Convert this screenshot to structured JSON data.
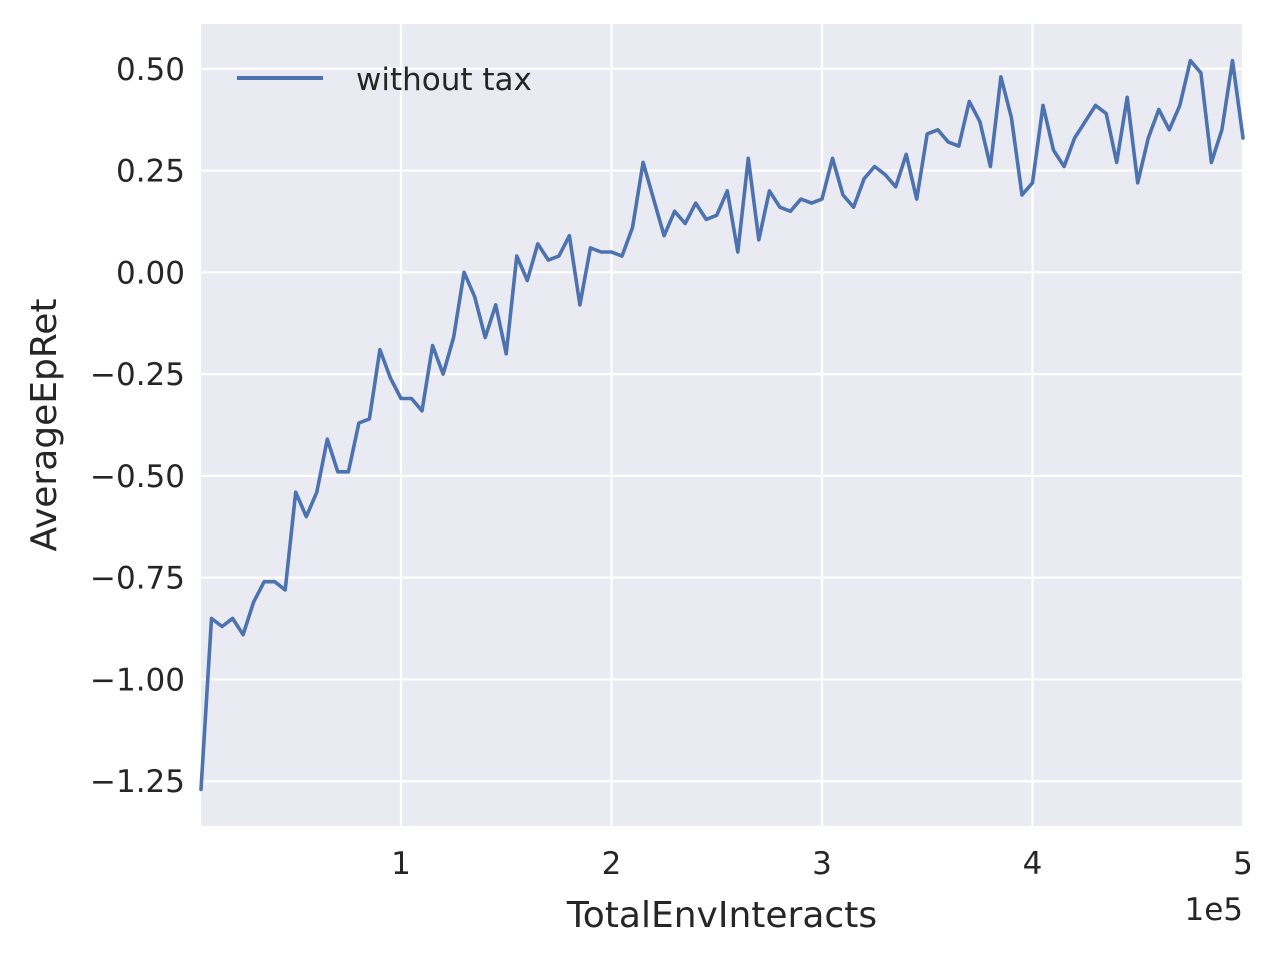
{
  "chart_data": {
    "type": "line",
    "title": "",
    "xlabel": "TotalEnvInteracts",
    "ylabel": "AverageEpRet",
    "x_offset_label": "1e5",
    "xlim": [
      5000,
      500000
    ],
    "ylim": [
      -1.36,
      0.61
    ],
    "x_ticks": [
      100000,
      200000,
      300000,
      400000,
      500000
    ],
    "x_tick_labels": [
      "1",
      "2",
      "3",
      "4",
      "5"
    ],
    "y_ticks": [
      0.5,
      0.25,
      0.0,
      -0.25,
      -0.5,
      -0.75,
      -1.0,
      -1.25
    ],
    "y_tick_labels": [
      "0.50",
      "0.25",
      "0.00",
      "−0.25",
      "−0.50",
      "−0.75",
      "−1.00",
      "−1.25"
    ],
    "grid": true,
    "background": "#EAEAF2",
    "legend_position": "upper-left",
    "series": [
      {
        "name": "without tax",
        "color": "#4C72B0",
        "x": [
          5000,
          10000,
          15000,
          20000,
          25000,
          30000,
          35000,
          40000,
          45000,
          50000,
          55000,
          60000,
          65000,
          70000,
          75000,
          80000,
          85000,
          90000,
          95000,
          100000,
          105000,
          110000,
          115000,
          120000,
          125000,
          130000,
          135000,
          140000,
          145000,
          150000,
          155000,
          160000,
          165000,
          170000,
          175000,
          180000,
          185000,
          190000,
          195000,
          200000,
          205000,
          210000,
          215000,
          220000,
          225000,
          230000,
          235000,
          240000,
          245000,
          250000,
          255000,
          260000,
          265000,
          270000,
          275000,
          280000,
          285000,
          290000,
          295000,
          300000,
          305000,
          310000,
          315000,
          320000,
          325000,
          330000,
          335000,
          340000,
          345000,
          350000,
          355000,
          360000,
          365000,
          370000,
          375000,
          380000,
          385000,
          390000,
          395000,
          400000,
          405000,
          410000,
          415000,
          420000,
          425000,
          430000,
          435000,
          440000,
          445000,
          450000,
          455000,
          460000,
          465000,
          470000,
          475000,
          480000,
          485000,
          490000,
          495000,
          500000
        ],
        "y": [
          -1.27,
          -0.85,
          -0.87,
          -0.85,
          -0.89,
          -0.81,
          -0.76,
          -0.76,
          -0.78,
          -0.54,
          -0.6,
          -0.54,
          -0.41,
          -0.49,
          -0.49,
          -0.37,
          -0.36,
          -0.19,
          -0.26,
          -0.31,
          -0.31,
          -0.34,
          -0.18,
          -0.25,
          -0.16,
          0.0,
          -0.06,
          -0.16,
          -0.08,
          -0.2,
          0.04,
          -0.02,
          0.07,
          0.03,
          0.04,
          0.09,
          -0.08,
          0.06,
          0.05,
          0.05,
          0.04,
          0.11,
          0.27,
          0.18,
          0.09,
          0.15,
          0.12,
          0.17,
          0.13,
          0.14,
          0.2,
          0.05,
          0.28,
          0.08,
          0.2,
          0.16,
          0.15,
          0.18,
          0.17,
          0.18,
          0.28,
          0.19,
          0.16,
          0.23,
          0.26,
          0.24,
          0.21,
          0.29,
          0.18,
          0.34,
          0.35,
          0.32,
          0.31,
          0.42,
          0.37,
          0.26,
          0.48,
          0.38,
          0.19,
          0.22,
          0.41,
          0.3,
          0.26,
          0.33,
          0.37,
          0.41,
          0.39,
          0.27,
          0.43,
          0.22,
          0.33,
          0.4,
          0.35,
          0.41,
          0.52,
          0.49,
          0.27,
          0.35,
          0.52,
          0.33
        ]
      }
    ]
  }
}
